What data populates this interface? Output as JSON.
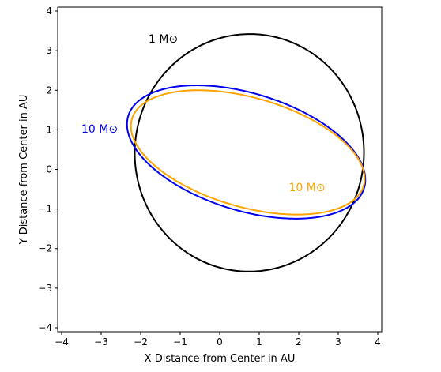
{
  "chart_data": {
    "type": "line",
    "title": "",
    "xlabel": "X Distance from Center in AU",
    "ylabel": "Y Distance from Center in AU",
    "xlim": [
      -4.1,
      4.1
    ],
    "ylim": [
      -4.1,
      4.1
    ],
    "xticks": [
      -4,
      -3,
      -2,
      -1,
      0,
      1,
      2,
      3,
      4
    ],
    "yticks": [
      -4,
      -3,
      -2,
      -1,
      0,
      1,
      2,
      3,
      4
    ],
    "xtick_labels": [
      "−4",
      "−3",
      "−2",
      "−1",
      "0",
      "1",
      "2",
      "3",
      "4"
    ],
    "ytick_labels": [
      "−4",
      "−3",
      "−2",
      "−1",
      "0",
      "1",
      "2",
      "3",
      "4"
    ],
    "grid": false,
    "legend": "none",
    "series": [
      {
        "color": "#000000",
        "shape": "ellipse",
        "center": [
          0.75,
          0.42
        ],
        "semi_axes": [
          2.9,
          3.0
        ],
        "rotation_deg": -3
      },
      {
        "color": "#0000ee",
        "shape": "ellipse",
        "center": [
          0.67,
          0.44
        ],
        "semi_axes": [
          3.12,
          1.48
        ],
        "rotation_deg": -17
      },
      {
        "color": "#ffa500",
        "shape": "ellipse",
        "center": [
          0.71,
          0.43
        ],
        "semi_axes": [
          3.05,
          1.38
        ],
        "rotation_deg": -16
      }
    ],
    "annotations": [
      {
        "text": "1 M⊙",
        "x": -1.8,
        "y": 3.2,
        "color": "#000000"
      },
      {
        "text": "10 M⊙",
        "x": -3.5,
        "y": 0.93,
        "color": "#0000ee"
      },
      {
        "text": "10 M⊙",
        "x": 1.75,
        "y": -0.55,
        "color": "#ffa500"
      }
    ]
  }
}
